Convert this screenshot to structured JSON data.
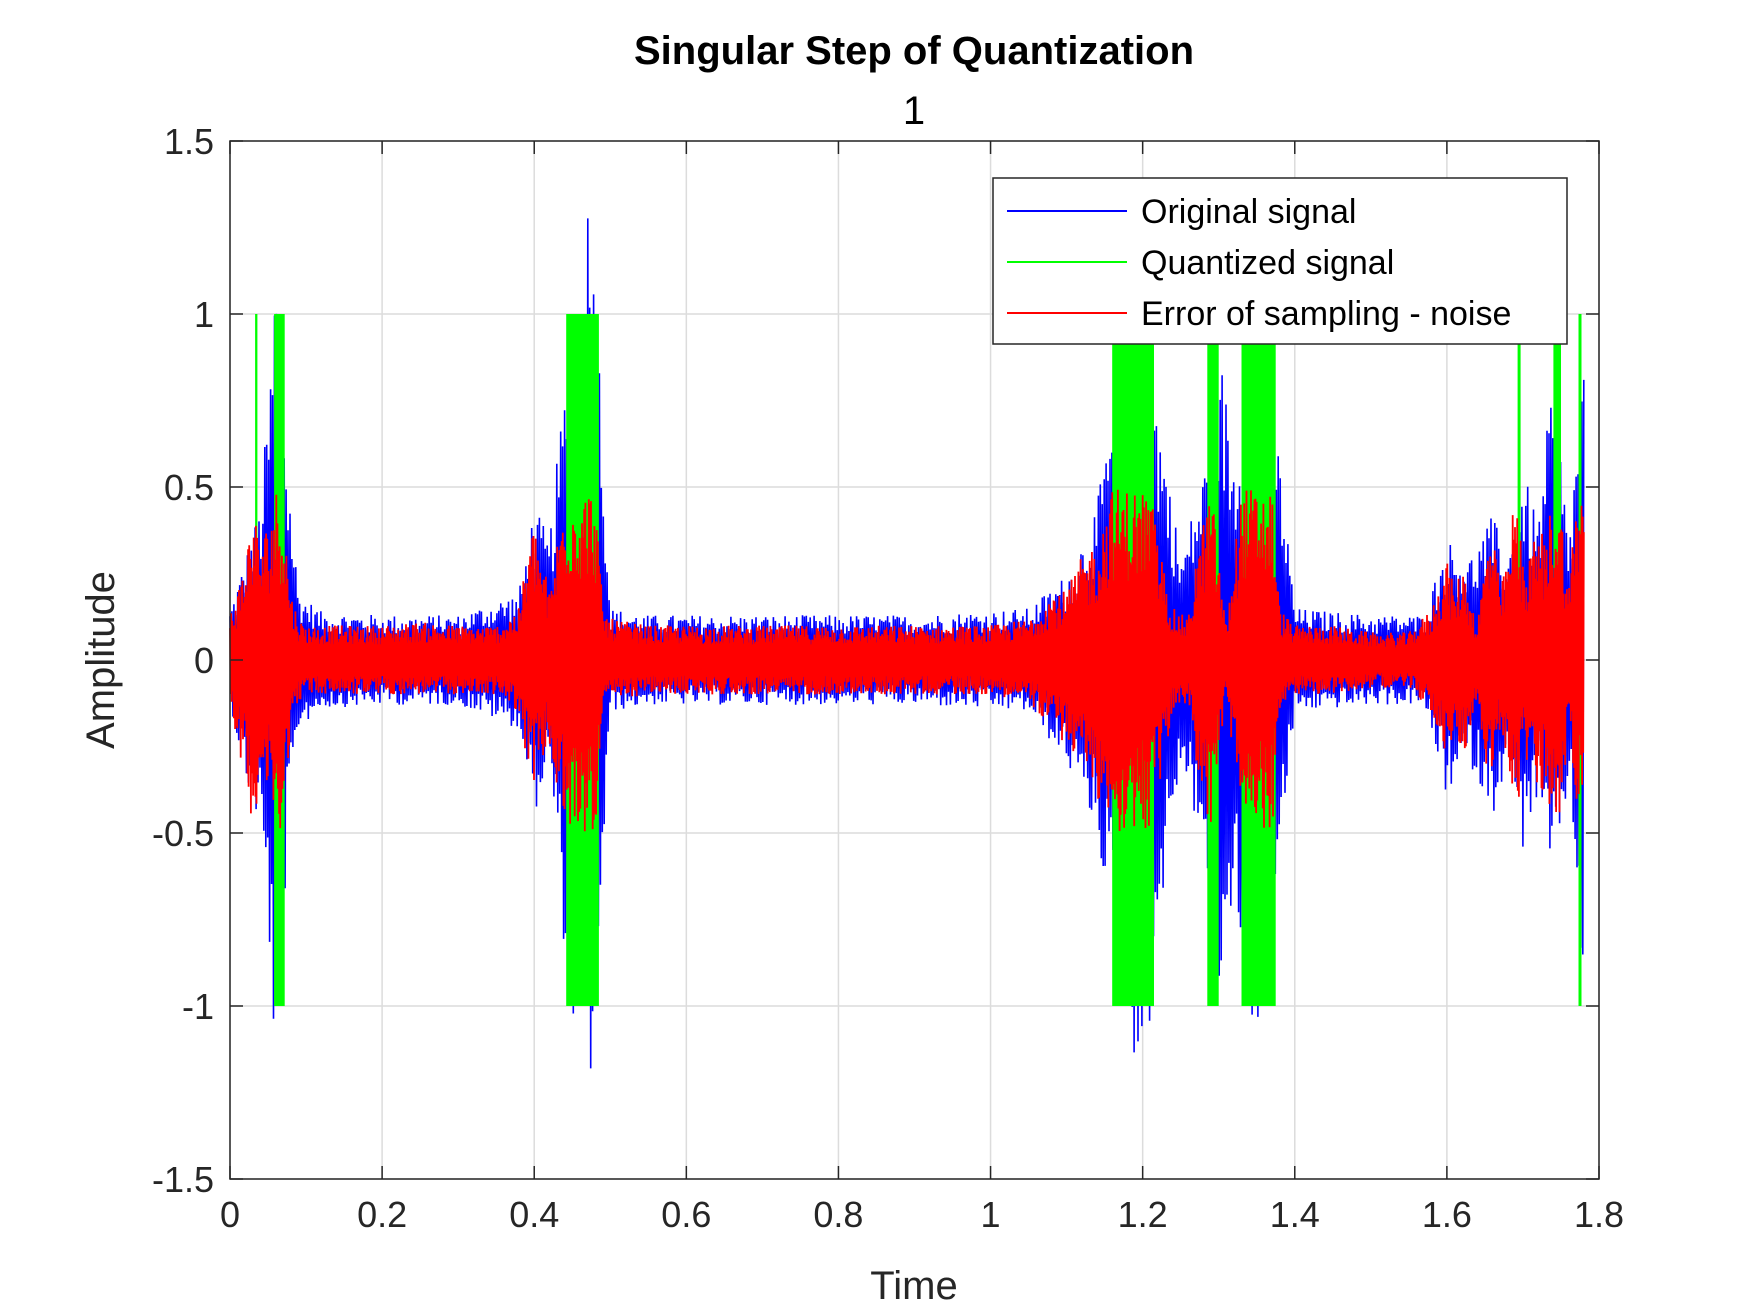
{
  "chart_data": {
    "type": "line",
    "title": "Singular Step of Quantization",
    "subtitle": "1",
    "xlabel": "Time",
    "ylabel": "Amplitude",
    "xlim": [
      0,
      1.8
    ],
    "ylim": [
      -1.5,
      1.5
    ],
    "xticks": [
      0,
      0.2,
      0.4,
      0.6,
      0.8,
      1,
      1.2,
      1.4,
      1.6,
      1.8
    ],
    "xtick_labels": [
      "0",
      "0.2",
      "0.4",
      "0.6",
      "0.8",
      "1",
      "1.2",
      "1.4",
      "1.6",
      "1.8"
    ],
    "yticks": [
      -1.5,
      -1,
      -0.5,
      0,
      0.5,
      1,
      1.5
    ],
    "ytick_labels": [
      "-1.5",
      "-1",
      "-0.5",
      "0",
      "0.5",
      "1",
      "1.5"
    ],
    "grid": true,
    "legend_position": "top-right",
    "series": [
      {
        "name": "Original signal",
        "color": "#0000ff",
        "envelope": {
          "x": [
            0,
            0.02,
            0.04,
            0.055,
            0.06,
            0.065,
            0.075,
            0.09,
            0.12,
            0.2,
            0.3,
            0.38,
            0.4,
            0.42,
            0.44,
            0.45,
            0.46,
            0.47,
            0.48,
            0.5,
            0.55,
            0.7,
            0.9,
            1.05,
            1.1,
            1.14,
            1.17,
            1.2,
            1.22,
            1.25,
            1.28,
            1.3,
            1.32,
            1.35,
            1.38,
            1.4,
            1.5,
            1.57,
            1.6,
            1.63,
            1.66,
            1.68,
            1.7,
            1.72,
            1.74,
            1.76,
            1.78
          ],
          "max": [
            0.15,
            0.3,
            0.45,
            0.9,
            1.26,
            1.1,
            0.6,
            0.2,
            0.14,
            0.13,
            0.13,
            0.2,
            0.45,
            0.35,
            0.8,
            1.15,
            1.05,
            1.38,
            1.2,
            0.15,
            0.13,
            0.13,
            0.13,
            0.15,
            0.25,
            0.45,
            0.9,
            0.97,
            0.75,
            0.3,
            0.55,
            0.93,
            0.6,
            0.99,
            0.6,
            0.15,
            0.13,
            0.13,
            0.35,
            0.3,
            0.42,
            0.3,
            0.55,
            0.4,
            0.85,
            0.35,
            0.9
          ],
          "min": [
            -0.12,
            -0.35,
            -0.5,
            -0.95,
            -1.32,
            -1.05,
            -0.55,
            -0.2,
            -0.14,
            -0.13,
            -0.13,
            -0.2,
            -0.45,
            -0.3,
            -0.85,
            -1.08,
            -1.15,
            -1.32,
            -1.1,
            -0.15,
            -0.13,
            -0.13,
            -0.13,
            -0.15,
            -0.3,
            -0.5,
            -0.95,
            -1.27,
            -0.8,
            -0.3,
            -0.55,
            -0.99,
            -0.7,
            -1.13,
            -0.6,
            -0.15,
            -0.13,
            -0.13,
            -0.4,
            -0.3,
            -0.45,
            -0.3,
            -0.55,
            -0.4,
            -0.7,
            -0.35,
            -0.99
          ]
        }
      },
      {
        "name": "Quantized signal",
        "color": "#00ff00",
        "levels": [
          -1,
          0,
          1
        ],
        "segments": [
          {
            "x": [
              0.033,
              0.036
            ],
            "max": 1,
            "min": 0
          },
          {
            "x": [
              0.058,
              0.072
            ],
            "max": 1,
            "min": -1
          },
          {
            "x": [
              0.442,
              0.485
            ],
            "max": 1,
            "min": -1
          },
          {
            "x": [
              1.16,
              1.215
            ],
            "max": 1,
            "min": -1
          },
          {
            "x": [
              1.285,
              1.3
            ],
            "max": 1,
            "min": -1
          },
          {
            "x": [
              1.33,
              1.375
            ],
            "max": 1,
            "min": -1
          },
          {
            "x": [
              1.693,
              1.697
            ],
            "max": 1,
            "min": 0
          },
          {
            "x": [
              1.74,
              1.75
            ],
            "max": 1,
            "min": 0
          },
          {
            "x": [
              1.773,
              1.777
            ],
            "max": 1,
            "min": -1
          }
        ]
      },
      {
        "name": "Error of sampling - noise",
        "color": "#ff0000",
        "envelope": {
          "x": [
            0,
            0.01,
            0.02,
            0.03,
            0.04,
            0.05,
            0.06,
            0.065,
            0.07,
            0.08,
            0.09,
            0.1,
            0.15,
            0.2,
            0.25,
            0.3,
            0.35,
            0.38,
            0.39,
            0.4,
            0.41,
            0.42,
            0.43,
            0.44,
            0.46,
            0.48,
            0.49,
            0.5,
            0.55,
            0.6,
            0.7,
            0.8,
            0.9,
            1.0,
            1.05,
            1.08,
            1.1,
            1.12,
            1.14,
            1.16,
            1.18,
            1.2,
            1.21,
            1.22,
            1.24,
            1.26,
            1.27,
            1.28,
            1.29,
            1.3,
            1.31,
            1.32,
            1.33,
            1.35,
            1.37,
            1.38,
            1.4,
            1.45,
            1.5,
            1.55,
            1.58,
            1.6,
            1.61,
            1.62,
            1.63,
            1.64,
            1.65,
            1.66,
            1.67,
            1.68,
            1.69,
            1.7,
            1.71,
            1.72,
            1.73,
            1.74,
            1.75,
            1.76,
            1.77,
            1.78
          ],
          "max": [
            0.15,
            0.2,
            0.3,
            0.45,
            0.35,
            0.4,
            0.5,
            0.5,
            0.45,
            0.2,
            0.12,
            0.1,
            0.1,
            0.1,
            0.11,
            0.1,
            0.1,
            0.15,
            0.3,
            0.4,
            0.3,
            0.2,
            0.35,
            0.5,
            0.5,
            0.5,
            0.15,
            0.12,
            0.1,
            0.1,
            0.1,
            0.1,
            0.1,
            0.1,
            0.12,
            0.2,
            0.2,
            0.3,
            0.35,
            0.5,
            0.5,
            0.5,
            0.5,
            0.35,
            0.15,
            0.12,
            0.3,
            0.4,
            0.5,
            0.3,
            0.1,
            0.3,
            0.5,
            0.5,
            0.5,
            0.15,
            0.1,
            0.1,
            0.08,
            0.08,
            0.15,
            0.3,
            0.2,
            0.28,
            0.2,
            0.1,
            0.3,
            0.4,
            0.2,
            0.3,
            0.5,
            0.3,
            0.3,
            0.4,
            0.35,
            0.5,
            0.45,
            0.2,
            0.5,
            0.5
          ],
          "min": [
            -0.1,
            -0.25,
            -0.35,
            -0.48,
            -0.35,
            -0.4,
            -0.5,
            -0.5,
            -0.45,
            -0.2,
            -0.12,
            -0.1,
            -0.1,
            -0.1,
            -0.1,
            -0.1,
            -0.1,
            -0.15,
            -0.3,
            -0.35,
            -0.3,
            -0.25,
            -0.4,
            -0.5,
            -0.5,
            -0.5,
            -0.15,
            -0.12,
            -0.1,
            -0.1,
            -0.1,
            -0.1,
            -0.1,
            -0.1,
            -0.12,
            -0.2,
            -0.25,
            -0.3,
            -0.4,
            -0.5,
            -0.5,
            -0.5,
            -0.5,
            -0.4,
            -0.15,
            -0.12,
            -0.3,
            -0.4,
            -0.5,
            -0.3,
            -0.1,
            -0.3,
            -0.5,
            -0.5,
            -0.5,
            -0.15,
            -0.1,
            -0.1,
            -0.08,
            -0.08,
            -0.15,
            -0.3,
            -0.2,
            -0.3,
            -0.2,
            -0.1,
            -0.3,
            -0.4,
            -0.2,
            -0.3,
            -0.5,
            -0.3,
            -0.3,
            -0.45,
            -0.35,
            -0.5,
            -0.45,
            -0.2,
            -0.45,
            -0.4
          ]
        }
      }
    ]
  }
}
